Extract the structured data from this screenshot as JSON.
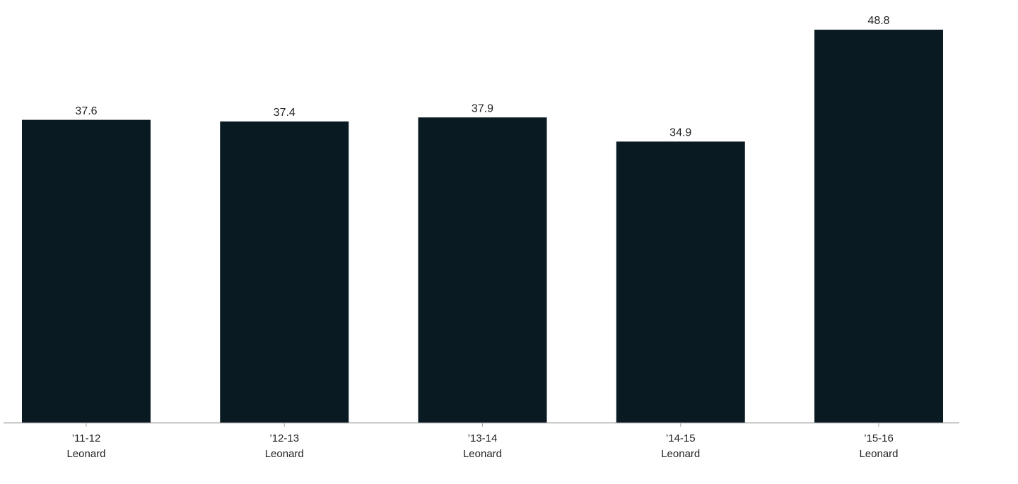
{
  "chart_data": {
    "type": "bar",
    "categories": [
      [
        "’11-12",
        "Leonard"
      ],
      [
        "’12-13",
        "Leonard"
      ],
      [
        "’13-14",
        "Leonard"
      ],
      [
        "’14-15",
        "Leonard"
      ],
      [
        "’15-16",
        "Leonard"
      ]
    ],
    "values": [
      37.6,
      37.4,
      37.9,
      34.9,
      48.8
    ],
    "color": "#0a1a22",
    "ylim": [
      0,
      48.8
    ]
  }
}
